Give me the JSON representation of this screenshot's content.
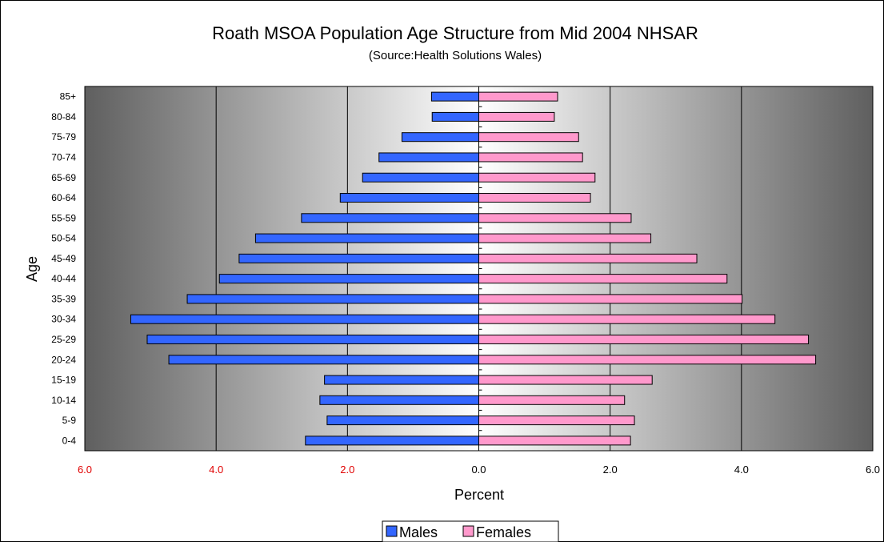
{
  "chart_data": {
    "type": "bar",
    "orientation": "horizontal",
    "title": "Roath MSOA Population Age Structure from Mid 2004 NHSAR",
    "subtitle": "(Source:Health Solutions Wales)",
    "xlabel": "Percent",
    "ylabel": "Age",
    "categories": [
      "85+",
      "80-84",
      "75-79",
      "70-74",
      "65-69",
      "60-64",
      "55-59",
      "50-54",
      "45-49",
      "40-44",
      "35-39",
      "30-34",
      "25-29",
      "20-24",
      "15-19",
      "10-14",
      "5-9",
      "0-4"
    ],
    "x_ticks": [
      "6.0",
      "4.0",
      "2.0",
      "0.0",
      "2.0",
      "4.0",
      "6.0"
    ],
    "xlim": [
      -6,
      6
    ],
    "series": [
      {
        "name": "Males",
        "color": "#3366ff",
        "values": [
          0.72,
          0.71,
          1.17,
          1.52,
          1.77,
          2.11,
          2.7,
          3.4,
          3.65,
          3.95,
          4.44,
          5.3,
          5.05,
          4.72,
          2.35,
          2.42,
          2.31,
          2.64
        ]
      },
      {
        "name": "Females",
        "color": "#ff99cc",
        "values": [
          1.2,
          1.15,
          1.52,
          1.58,
          1.77,
          1.7,
          2.32,
          2.62,
          3.32,
          3.78,
          4.01,
          4.51,
          5.02,
          5.13,
          2.64,
          2.22,
          2.37,
          2.31
        ]
      }
    ],
    "negative_tick_color": "#e00000",
    "grid": true,
    "legend": "bottom-center"
  }
}
